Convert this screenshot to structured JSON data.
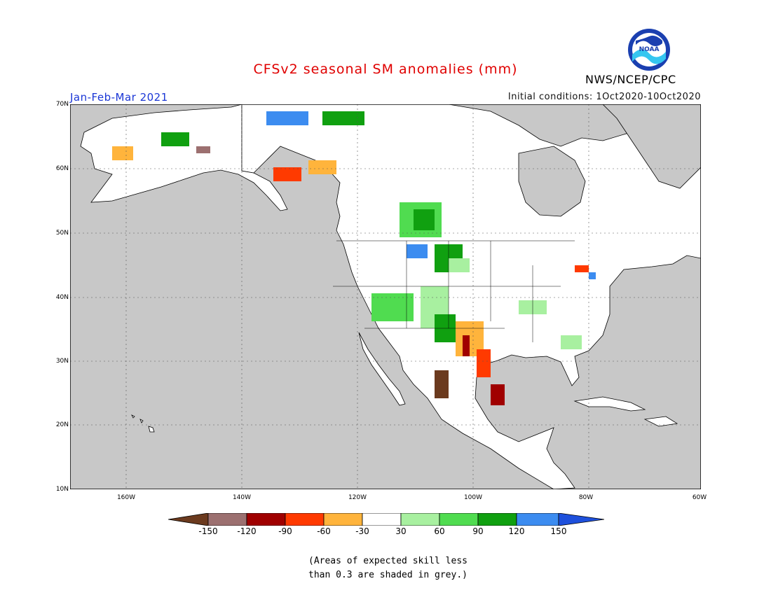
{
  "header": {
    "title": "CFSv2 seasonal SM anomalies (mm)",
    "period": "Jan-Feb-Mar 2021",
    "initial_conditions": "Initial conditions: 1Oct2020-10Oct2020",
    "agency": "NWS/NCEP/CPC",
    "logo_text": "NOAA"
  },
  "map": {
    "region": "North America",
    "lat_labels": [
      "70N",
      "60N",
      "50N",
      "40N",
      "30N",
      "20N",
      "10N"
    ],
    "lon_labels": [
      "160W",
      "140W",
      "120W",
      "100W",
      "80W",
      "60W"
    ],
    "ocean_color": "#c8c8c8",
    "land_color": "#ffffff"
  },
  "colorbar": {
    "labels": [
      "-150",
      "-120",
      "-90",
      "-60",
      "-30",
      "30",
      "60",
      "90",
      "120",
      "150"
    ],
    "colors": [
      "#6b3a1e",
      "#9c7070",
      "#a00000",
      "#ff3a00",
      "#ffb43c",
      "#ffffff",
      "#a8f0a0",
      "#50dc50",
      "#10a010",
      "#3c8cf0",
      "#1e50dc"
    ]
  },
  "note": {
    "line1": "(Areas of expected skill less",
    "line2": "than 0.3 are shaded in grey.)"
  }
}
